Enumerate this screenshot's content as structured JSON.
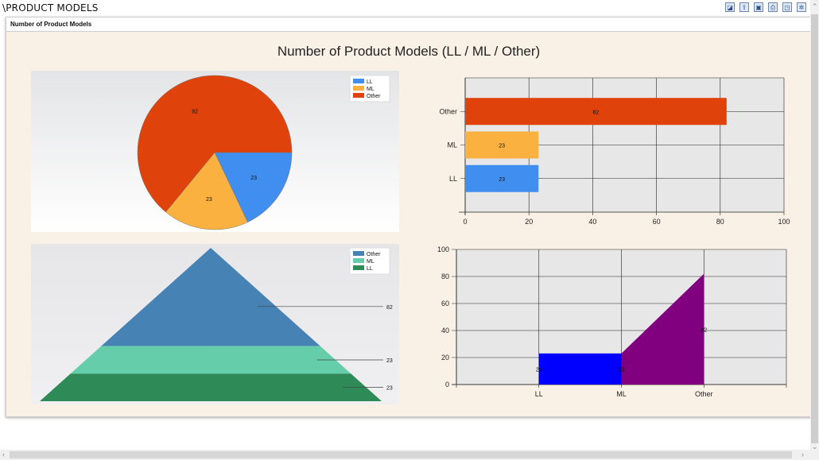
{
  "window": {
    "title": "\\PRODUCT MODELS"
  },
  "toolbar": {
    "icons": [
      "chart-icon",
      "export-icon",
      "save-icon",
      "print-icon",
      "print-preview-icon",
      "settings-icon"
    ]
  },
  "panel": {
    "header": "Number of Product Models",
    "chart_title": "Number of Product Models (LL / ML / Other)"
  },
  "chart_data": [
    {
      "type": "pie",
      "categories": [
        "LL",
        "ML",
        "Other"
      ],
      "values": [
        23,
        23,
        82
      ],
      "colors": [
        "#3f8ef0",
        "#fbb13f",
        "#e0420b"
      ],
      "legend": "top-right"
    },
    {
      "type": "bar",
      "orientation": "horizontal",
      "categories": [
        "LL",
        "ML",
        "Other"
      ],
      "values": [
        23,
        23,
        82
      ],
      "colors": [
        "#3f8ef0",
        "#fbb13f",
        "#e0420b"
      ],
      "xlim": [
        0,
        100
      ],
      "xticks": [
        0,
        20,
        40,
        60,
        80,
        100
      ],
      "grid": true
    },
    {
      "type": "pyramid",
      "categories": [
        "Other",
        "ML",
        "LL"
      ],
      "values": [
        82,
        23,
        23
      ],
      "colors": [
        "#4682b4",
        "#66cdaa",
        "#2e8b57"
      ],
      "legend": "top-right"
    },
    {
      "type": "area",
      "categories": [
        "LL",
        "ML",
        "Other"
      ],
      "values": [
        23,
        23,
        82
      ],
      "colors": [
        "#0000ff",
        "#800080"
      ],
      "ylim": [
        0,
        100
      ],
      "yticks": [
        0,
        20,
        40,
        60,
        80,
        100
      ],
      "grid": true
    }
  ]
}
